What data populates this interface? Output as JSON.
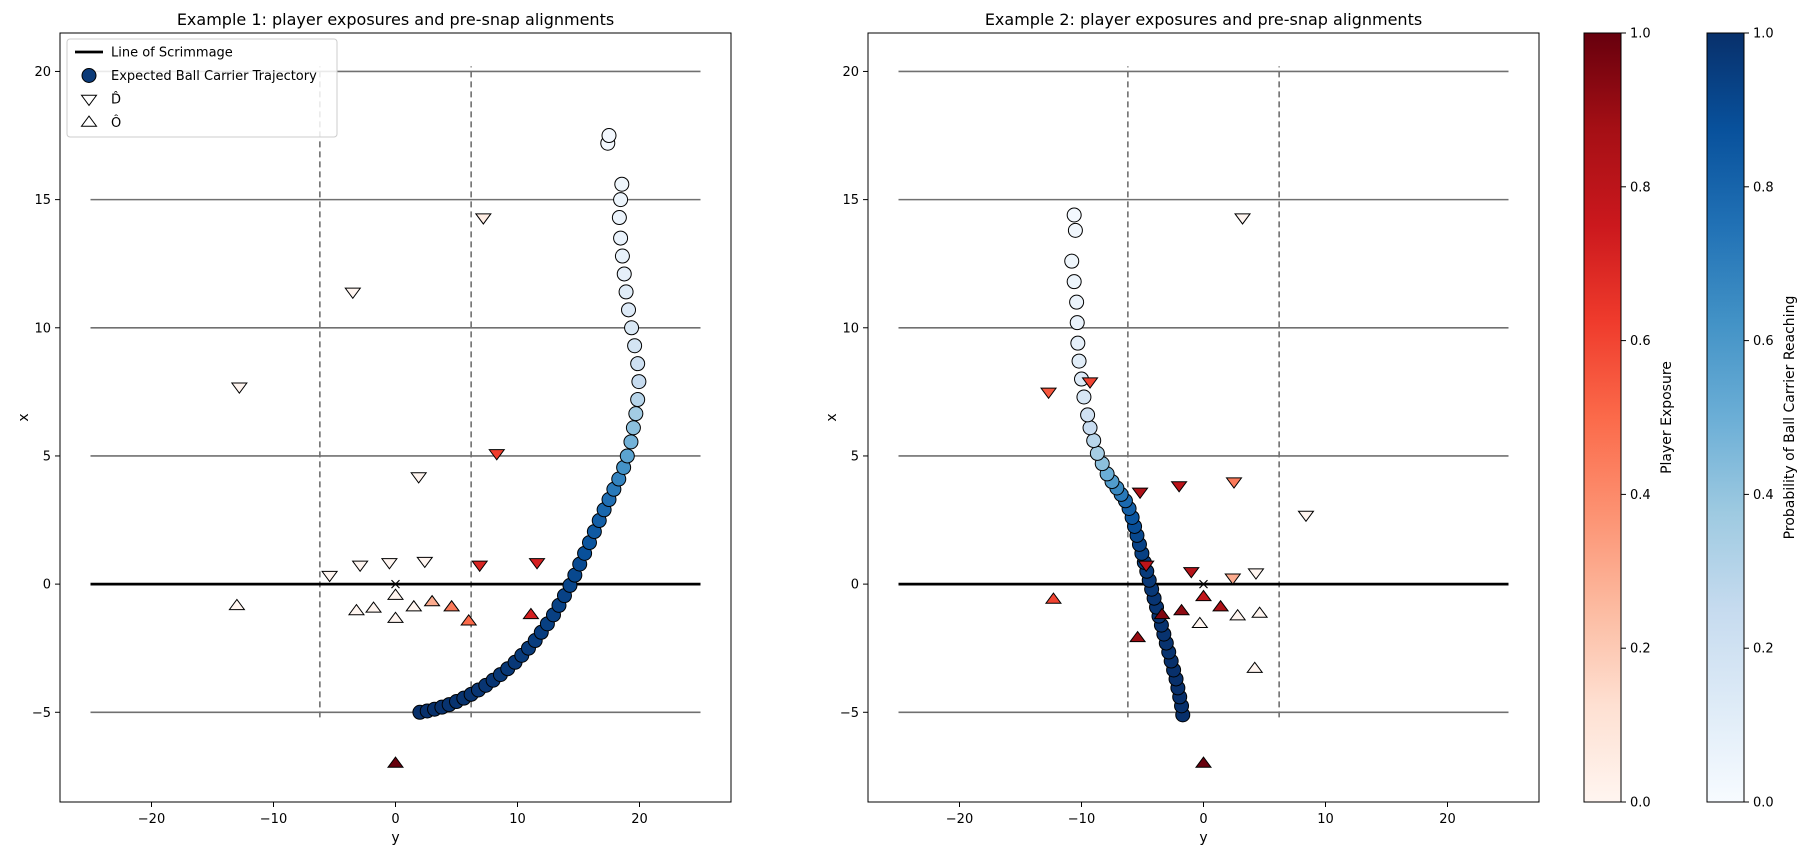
{
  "chart_data": [
    {
      "type": "scatter",
      "title": "Example 1: player exposures and pre-snap alignments",
      "xlabel": "y",
      "ylabel": "x",
      "xlim": [
        -27.5,
        27.5
      ],
      "ylim": [
        -8.5,
        21.5
      ],
      "xticks": [
        -20,
        -10,
        0,
        10,
        20
      ],
      "yticks": [
        -5,
        0,
        5,
        10,
        15,
        20
      ],
      "xtick_labels": [
        "−20",
        "−10",
        "0",
        "10",
        "20"
      ],
      "ytick_labels": [
        "−5",
        "0",
        "5",
        "10",
        "15",
        "20"
      ],
      "field_lines": {
        "x_range": [
          -25,
          25
        ],
        "levels": [
          -5,
          5,
          10,
          15,
          20
        ]
      },
      "line_of_scrimmage": 0,
      "dashed_lines": {
        "positions": [
          -6.2,
          6.2
        ],
        "range": [
          -5.2,
          20.2
        ]
      },
      "snap_marker": [
        0,
        0
      ],
      "legend": {
        "position": "upper-left",
        "items": [
          "Line of Scrimmage",
          "Expected Ball Carrier Trajectory",
          "D̂",
          "Ô"
        ]
      },
      "trajectory": [
        {
          "y": 2.0,
          "x": -5.0,
          "p": 1.0
        },
        {
          "y": 2.6,
          "x": -4.95,
          "p": 1.0
        },
        {
          "y": 3.2,
          "x": -4.88,
          "p": 1.0
        },
        {
          "y": 3.8,
          "x": -4.8,
          "p": 1.0
        },
        {
          "y": 4.4,
          "x": -4.7,
          "p": 0.99
        },
        {
          "y": 5.0,
          "x": -4.58,
          "p": 0.99
        },
        {
          "y": 5.6,
          "x": -4.45,
          "p": 0.99
        },
        {
          "y": 6.2,
          "x": -4.3,
          "p": 0.99
        },
        {
          "y": 6.8,
          "x": -4.13,
          "p": 0.98
        },
        {
          "y": 7.4,
          "x": -3.95,
          "p": 0.98
        },
        {
          "y": 8.0,
          "x": -3.75,
          "p": 0.98
        },
        {
          "y": 8.6,
          "x": -3.53,
          "p": 0.97
        },
        {
          "y": 9.2,
          "x": -3.3,
          "p": 0.97
        },
        {
          "y": 9.8,
          "x": -3.05,
          "p": 0.97
        },
        {
          "y": 10.35,
          "x": -2.78,
          "p": 0.96
        },
        {
          "y": 10.9,
          "x": -2.5,
          "p": 0.96
        },
        {
          "y": 11.45,
          "x": -2.2,
          "p": 0.95
        },
        {
          "y": 11.95,
          "x": -1.88,
          "p": 0.95
        },
        {
          "y": 12.45,
          "x": -1.55,
          "p": 0.94
        },
        {
          "y": 12.95,
          "x": -1.2,
          "p": 0.94
        },
        {
          "y": 13.4,
          "x": -0.83,
          "p": 0.93
        },
        {
          "y": 13.85,
          "x": -0.45,
          "p": 0.93
        },
        {
          "y": 14.3,
          "x": -0.05,
          "p": 0.92
        },
        {
          "y": 14.7,
          "x": 0.35,
          "p": 0.91
        },
        {
          "y": 15.1,
          "x": 0.78,
          "p": 0.9
        },
        {
          "y": 15.5,
          "x": 1.2,
          "p": 0.88
        },
        {
          "y": 15.9,
          "x": 1.62,
          "p": 0.86
        },
        {
          "y": 16.3,
          "x": 2.05,
          "p": 0.84
        },
        {
          "y": 16.7,
          "x": 2.48,
          "p": 0.82
        },
        {
          "y": 17.1,
          "x": 2.9,
          "p": 0.79
        },
        {
          "y": 17.5,
          "x": 3.3,
          "p": 0.76
        },
        {
          "y": 17.9,
          "x": 3.7,
          "p": 0.72
        },
        {
          "y": 18.3,
          "x": 4.1,
          "p": 0.68
        },
        {
          "y": 18.7,
          "x": 4.55,
          "p": 0.62
        },
        {
          "y": 19.0,
          "x": 5.0,
          "p": 0.55
        },
        {
          "y": 19.3,
          "x": 5.55,
          "p": 0.48
        },
        {
          "y": 19.5,
          "x": 6.1,
          "p": 0.42
        },
        {
          "y": 19.7,
          "x": 6.65,
          "p": 0.36
        },
        {
          "y": 19.85,
          "x": 7.2,
          "p": 0.3
        },
        {
          "y": 19.95,
          "x": 7.9,
          "p": 0.25
        },
        {
          "y": 19.85,
          "x": 8.6,
          "p": 0.21
        },
        {
          "y": 19.6,
          "x": 9.3,
          "p": 0.18
        },
        {
          "y": 19.35,
          "x": 10.0,
          "p": 0.15
        },
        {
          "y": 19.1,
          "x": 10.7,
          "p": 0.13
        },
        {
          "y": 18.9,
          "x": 11.4,
          "p": 0.11
        },
        {
          "y": 18.75,
          "x": 12.1,
          "p": 0.09
        },
        {
          "y": 18.6,
          "x": 12.8,
          "p": 0.08
        },
        {
          "y": 18.45,
          "x": 13.5,
          "p": 0.07
        },
        {
          "y": 18.35,
          "x": 14.3,
          "p": 0.06
        },
        {
          "y": 18.45,
          "x": 15.0,
          "p": 0.05
        },
        {
          "y": 18.55,
          "x": 15.6,
          "p": 0.04
        },
        {
          "y": 17.4,
          "x": 17.2,
          "p": 0.02
        },
        {
          "y": 17.5,
          "x": 17.5,
          "p": 0.02
        }
      ],
      "defense": [
        {
          "y": -12.8,
          "x": 7.7,
          "e": 0.0
        },
        {
          "y": -3.5,
          "x": 11.4,
          "e": 0.0
        },
        {
          "y": 1.9,
          "x": 4.2,
          "e": 0.0
        },
        {
          "y": 7.2,
          "x": 14.3,
          "e": 0.05
        },
        {
          "y": 8.3,
          "x": 5.1,
          "e": 0.62
        },
        {
          "y": -5.4,
          "x": 0.35,
          "e": 0.0
        },
        {
          "y": -2.9,
          "x": 0.75,
          "e": 0.0
        },
        {
          "y": -0.5,
          "x": 0.85,
          "e": 0.0
        },
        {
          "y": 2.4,
          "x": 0.9,
          "e": 0.0
        },
        {
          "y": 6.9,
          "x": 0.75,
          "e": 0.7
        },
        {
          "y": 11.6,
          "x": 0.85,
          "e": 0.72
        }
      ],
      "offense": [
        {
          "y": -13.0,
          "x": -0.85,
          "e": 0.0
        },
        {
          "y": -3.2,
          "x": -1.05,
          "e": 0.0
        },
        {
          "y": -1.8,
          "x": -0.95,
          "e": 0.0
        },
        {
          "y": 0.0,
          "x": -0.45,
          "e": 0.0
        },
        {
          "y": 0.0,
          "x": -1.35,
          "e": 0.0
        },
        {
          "y": 1.5,
          "x": -0.9,
          "e": 0.0
        },
        {
          "y": 3.0,
          "x": -0.7,
          "e": 0.3
        },
        {
          "y": 4.6,
          "x": -0.9,
          "e": 0.45
        },
        {
          "y": 6.0,
          "x": -1.45,
          "e": 0.5
        },
        {
          "y": 11.1,
          "x": -1.2,
          "e": 0.72
        },
        {
          "y": 0.0,
          "x": -7.0,
          "e": 1.0
        }
      ]
    },
    {
      "type": "scatter",
      "title": "Example 2: player exposures and pre-snap alignments",
      "xlabel": "y",
      "ylabel": "x",
      "xlim": [
        -27.5,
        27.5
      ],
      "ylim": [
        -8.5,
        21.5
      ],
      "xticks": [
        -20,
        -10,
        0,
        10,
        20
      ],
      "yticks": [
        -5,
        0,
        5,
        10,
        15,
        20
      ],
      "xtick_labels": [
        "−20",
        "−10",
        "0",
        "10",
        "20"
      ],
      "ytick_labels": [
        "−5",
        "0",
        "5",
        "10",
        "15",
        "20"
      ],
      "field_lines": {
        "x_range": [
          -25,
          25
        ],
        "levels": [
          -5,
          5,
          10,
          15,
          20
        ]
      },
      "line_of_scrimmage": 0,
      "dashed_lines": {
        "positions": [
          -6.2,
          6.2
        ],
        "range": [
          -5.2,
          20.2
        ]
      },
      "snap_marker": [
        0,
        0
      ],
      "trajectory": [
        {
          "y": -1.7,
          "x": -5.1,
          "p": 1.0
        },
        {
          "y": -1.8,
          "x": -4.75,
          "p": 1.0
        },
        {
          "y": -1.95,
          "x": -4.4,
          "p": 1.0
        },
        {
          "y": -2.1,
          "x": -4.05,
          "p": 1.0
        },
        {
          "y": -2.25,
          "x": -3.7,
          "p": 1.0
        },
        {
          "y": -2.45,
          "x": -3.35,
          "p": 1.0
        },
        {
          "y": -2.65,
          "x": -3.0,
          "p": 1.0
        },
        {
          "y": -2.85,
          "x": -2.65,
          "p": 0.99
        },
        {
          "y": -3.05,
          "x": -2.3,
          "p": 0.99
        },
        {
          "y": -3.25,
          "x": -1.95,
          "p": 0.99
        },
        {
          "y": -3.45,
          "x": -1.6,
          "p": 0.99
        },
        {
          "y": -3.65,
          "x": -1.25,
          "p": 0.98
        },
        {
          "y": -3.85,
          "x": -0.9,
          "p": 0.98
        },
        {
          "y": -4.05,
          "x": -0.55,
          "p": 0.98
        },
        {
          "y": -4.25,
          "x": -0.2,
          "p": 0.97
        },
        {
          "y": -4.45,
          "x": 0.15,
          "p": 0.97
        },
        {
          "y": -4.65,
          "x": 0.5,
          "p": 0.96
        },
        {
          "y": -4.85,
          "x": 0.85,
          "p": 0.95
        },
        {
          "y": -5.05,
          "x": 1.2,
          "p": 0.94
        },
        {
          "y": -5.25,
          "x": 1.55,
          "p": 0.93
        },
        {
          "y": -5.45,
          "x": 1.9,
          "p": 0.91
        },
        {
          "y": -5.65,
          "x": 2.25,
          "p": 0.89
        },
        {
          "y": -5.85,
          "x": 2.6,
          "p": 0.86
        },
        {
          "y": -6.1,
          "x": 2.95,
          "p": 0.82
        },
        {
          "y": -6.4,
          "x": 3.25,
          "p": 0.78
        },
        {
          "y": -6.75,
          "x": 3.5,
          "p": 0.72
        },
        {
          "y": -7.1,
          "x": 3.75,
          "p": 0.66
        },
        {
          "y": -7.5,
          "x": 4.0,
          "p": 0.58
        },
        {
          "y": -7.9,
          "x": 4.3,
          "p": 0.5
        },
        {
          "y": -8.3,
          "x": 4.7,
          "p": 0.42
        },
        {
          "y": -8.7,
          "x": 5.1,
          "p": 0.35
        },
        {
          "y": -9.0,
          "x": 5.6,
          "p": 0.29
        },
        {
          "y": -9.3,
          "x": 6.1,
          "p": 0.24
        },
        {
          "y": -9.5,
          "x": 6.6,
          "p": 0.2
        },
        {
          "y": -9.8,
          "x": 7.3,
          "p": 0.16
        },
        {
          "y": -10.0,
          "x": 8.0,
          "p": 0.13
        },
        {
          "y": -10.2,
          "x": 8.7,
          "p": 0.11
        },
        {
          "y": -10.3,
          "x": 9.4,
          "p": 0.09
        },
        {
          "y": -10.35,
          "x": 10.2,
          "p": 0.07
        },
        {
          "y": -10.4,
          "x": 11.0,
          "p": 0.06
        },
        {
          "y": -10.6,
          "x": 11.8,
          "p": 0.05
        },
        {
          "y": -10.8,
          "x": 12.6,
          "p": 0.04
        },
        {
          "y": -10.5,
          "x": 13.8,
          "p": 0.03
        },
        {
          "y": -10.6,
          "x": 14.4,
          "p": 0.02
        }
      ],
      "defense": [
        {
          "y": -12.7,
          "x": 7.5,
          "e": 0.55
        },
        {
          "y": -9.3,
          "x": 7.9,
          "e": 0.6
        },
        {
          "y": 3.2,
          "x": 14.3,
          "e": 0.0
        },
        {
          "y": 8.4,
          "x": 2.7,
          "e": 0.0
        },
        {
          "y": -5.2,
          "x": 3.6,
          "e": 0.85
        },
        {
          "y": -2.0,
          "x": 3.85,
          "e": 0.8
        },
        {
          "y": 2.5,
          "x": 4.0,
          "e": 0.45
        },
        {
          "y": -4.7,
          "x": 0.75,
          "e": 0.8
        },
        {
          "y": -1.0,
          "x": 0.5,
          "e": 0.82
        },
        {
          "y": 2.4,
          "x": 0.25,
          "e": 0.3
        },
        {
          "y": 4.3,
          "x": 0.45,
          "e": 0.0
        }
      ],
      "offense": [
        {
          "y": -12.3,
          "x": -0.6,
          "e": 0.6
        },
        {
          "y": -5.4,
          "x": -2.1,
          "e": 0.9
        },
        {
          "y": -3.4,
          "x": -1.2,
          "e": 0.95
        },
        {
          "y": -1.8,
          "x": -1.05,
          "e": 0.92
        },
        {
          "y": 0.0,
          "x": -0.5,
          "e": 0.78
        },
        {
          "y": 1.4,
          "x": -0.9,
          "e": 0.85
        },
        {
          "y": -0.3,
          "x": -1.55,
          "e": 0.0
        },
        {
          "y": 2.8,
          "x": -1.25,
          "e": 0.0
        },
        {
          "y": 4.6,
          "x": -1.15,
          "e": 0.0
        },
        {
          "y": 4.2,
          "x": -3.3,
          "e": 0.0
        },
        {
          "y": 0.0,
          "x": -7.0,
          "e": 1.0
        }
      ]
    }
  ],
  "colorbars": [
    {
      "label": "Player Exposure",
      "colormap": "Reds",
      "range": [
        0.0,
        1.0
      ],
      "tick_labels": [
        "0.0",
        "0.2",
        "0.4",
        "0.6",
        "0.8",
        "1.0"
      ]
    },
    {
      "label": "Probability of Ball Carrier Reaching",
      "colormap": "Blues",
      "range": [
        0.0,
        1.0
      ],
      "tick_labels": [
        "0.0",
        "0.2",
        "0.4",
        "0.6",
        "0.8",
        "1.0"
      ]
    }
  ],
  "colors": {
    "field_line": "#707070",
    "scrimmage_line": "#000000",
    "dashed_line": "#707070",
    "legend_marker_fill": "#0b3a78",
    "reds": [
      "#fff5f0",
      "#fee0d2",
      "#fcbba1",
      "#fc9272",
      "#fb6a4a",
      "#ef3b2c",
      "#cb181d",
      "#a50f15",
      "#67000d"
    ],
    "blues": [
      "#f7fbff",
      "#deebf7",
      "#c6dbef",
      "#9ecae1",
      "#6baed6",
      "#4292c6",
      "#2171b5",
      "#08519c",
      "#08306b"
    ]
  }
}
